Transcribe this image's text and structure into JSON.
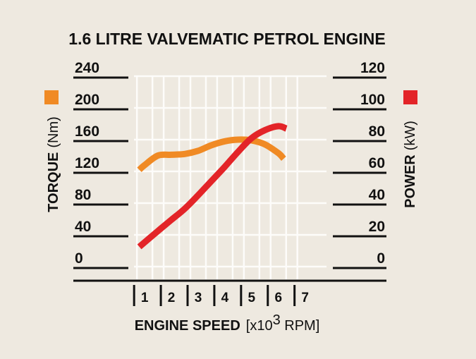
{
  "chart_data": {
    "type": "line",
    "title": "1.6 LITRE VALVEMATIC PETROL ENGINE",
    "xlabel": {
      "main": "ENGINE SPEED",
      "unit_prefix": "[x10",
      "unit_sup": "3",
      "unit_suffix": " RPM]"
    },
    "xticks": [
      "1",
      "2",
      "3",
      "4",
      "5",
      "6",
      "7"
    ],
    "xlim": [
      0.6,
      7.8
    ],
    "y_left": {
      "label_main": "TORQUE",
      "label_unit": "(Nm)",
      "ticks": [
        "0",
        "40",
        "80",
        "120",
        "160",
        "200",
        "240"
      ],
      "ylim": [
        0,
        240
      ]
    },
    "y_right": {
      "label_main": "POWER",
      "label_unit": "(kW)",
      "ticks": [
        "0",
        "20",
        "40",
        "60",
        "80",
        "100",
        "120"
      ],
      "ylim": [
        0,
        120
      ]
    },
    "series": [
      {
        "name": "Torque",
        "axis": "left",
        "color": "#f08a24",
        "marker_color": "#f08a24",
        "x": [
          0.8,
          1.0,
          1.5,
          2.0,
          2.5,
          3.0,
          3.5,
          4.0,
          4.5,
          5.0,
          5.5,
          6.0,
          6.2
        ],
        "y": [
          122,
          128,
          140,
          141,
          142,
          146,
          153,
          158,
          160,
          159,
          154,
          143,
          136
        ]
      },
      {
        "name": "Power",
        "axis": "right",
        "color": "#e32428",
        "marker_color": "#e32428",
        "x": [
          0.8,
          1.5,
          2.0,
          2.5,
          3.0,
          3.5,
          4.0,
          4.5,
          5.0,
          5.5,
          6.0,
          6.3
        ],
        "y": [
          12.5,
          22.5,
          29.5,
          36.5,
          45,
          54,
          63,
          72.5,
          81,
          86,
          88.5,
          87
        ]
      }
    ]
  }
}
